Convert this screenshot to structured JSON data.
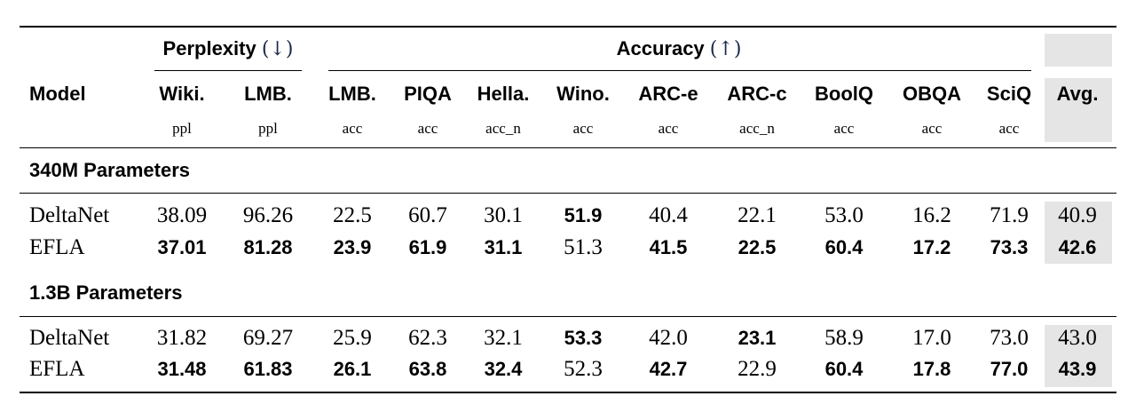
{
  "header": {
    "model_label": "Model",
    "groups": [
      {
        "label": "Perplexity",
        "arrow": "(↓)"
      },
      {
        "label": "Accuracy",
        "arrow": "(↑)"
      }
    ],
    "columns": [
      {
        "name": "Wiki.",
        "metric": "ppl"
      },
      {
        "name": "LMB.",
        "metric": "ppl"
      },
      {
        "name": "LMB.",
        "metric": "acc"
      },
      {
        "name": "PIQA",
        "metric": "acc"
      },
      {
        "name": "Hella.",
        "metric": "acc_n"
      },
      {
        "name": "Wino.",
        "metric": "acc"
      },
      {
        "name": "ARC-e",
        "metric": "acc"
      },
      {
        "name": "ARC-c",
        "metric": "acc_n"
      },
      {
        "name": "BoolQ",
        "metric": "acc"
      },
      {
        "name": "OBQA",
        "metric": "acc"
      },
      {
        "name": "SciQ",
        "metric": "acc"
      },
      {
        "name": "Avg.",
        "metric": ""
      }
    ]
  },
  "sections": [
    {
      "title": "340M Parameters",
      "rows": [
        {
          "model": "DeltaNet",
          "values": [
            "38.09",
            "96.26",
            "22.5",
            "60.7",
            "30.1",
            "51.9",
            "40.4",
            "22.1",
            "53.0",
            "16.2",
            "71.9",
            "40.9"
          ],
          "bold": [
            false,
            false,
            false,
            false,
            false,
            true,
            false,
            false,
            false,
            false,
            false,
            false
          ]
        },
        {
          "model": "EFLA",
          "values": [
            "37.01",
            "81.28",
            "23.9",
            "61.9",
            "31.1",
            "51.3",
            "41.5",
            "22.5",
            "60.4",
            "17.2",
            "73.3",
            "42.6"
          ],
          "bold": [
            true,
            true,
            true,
            true,
            true,
            false,
            true,
            true,
            true,
            true,
            true,
            true
          ]
        }
      ]
    },
    {
      "title": "1.3B Parameters",
      "rows": [
        {
          "model": "DeltaNet",
          "values": [
            "31.82",
            "69.27",
            "25.9",
            "62.3",
            "32.1",
            "53.3",
            "42.0",
            "23.1",
            "58.9",
            "17.0",
            "73.0",
            "43.0"
          ],
          "bold": [
            false,
            false,
            false,
            false,
            false,
            true,
            false,
            true,
            false,
            false,
            false,
            false
          ]
        },
        {
          "model": "EFLA",
          "values": [
            "31.48",
            "61.83",
            "26.1",
            "63.8",
            "32.4",
            "52.3",
            "42.7",
            "22.9",
            "60.4",
            "17.8",
            "77.0",
            "43.9"
          ],
          "bold": [
            true,
            true,
            true,
            true,
            true,
            false,
            true,
            false,
            true,
            true,
            true,
            true
          ]
        }
      ]
    }
  ],
  "colors": {
    "avg_shade": "#e5e5e5",
    "arrow": "#1a2a4a"
  }
}
